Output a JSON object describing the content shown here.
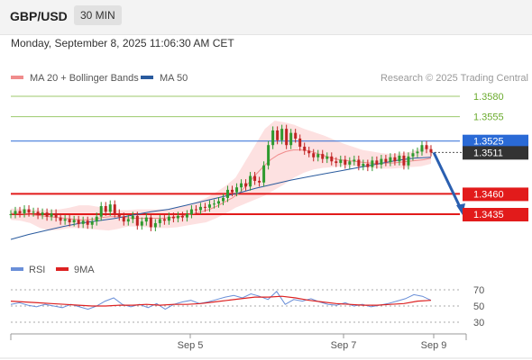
{
  "header": {
    "pair": "GBP/USD",
    "timeframe": "30 MIN"
  },
  "datetime": "Monday, September 8, 2025 11:06:30 AM CET",
  "copyright": "Research © 2025 Trading Central",
  "legend_price": [
    {
      "name": "MA 20 + Bollinger Bands",
      "color": "#f08c8c"
    },
    {
      "name": "MA 50",
      "color": "#2a5b9e"
    }
  ],
  "legend_rsi": [
    {
      "name": "RSI",
      "color": "#6a8fd8"
    },
    {
      "name": "9MA",
      "color": "#dd2222"
    }
  ],
  "colors": {
    "resistance": "#6bab2e",
    "support": "#e21b1b",
    "pivot": "#2a6ad6",
    "current": "#333333",
    "candle_up": "#2e9a2e",
    "candle_down": "#c02424",
    "band_fill": "#fde1e1",
    "arrow": "#2a5fb0"
  },
  "chart_data": [
    {
      "type": "candlestick",
      "pair": "GBP/USD",
      "timeframe": "30 MIN",
      "x_ticks": [
        "Sep 5",
        "Sep 7",
        "Sep 9"
      ],
      "levels": [
        {
          "value": "1.3580",
          "kind": "resistance"
        },
        {
          "value": "1.3555",
          "kind": "resistance"
        },
        {
          "value": "1.3525",
          "kind": "pivot"
        },
        {
          "value": "1.3511",
          "kind": "current"
        },
        {
          "value": "1.3460",
          "kind": "support"
        },
        {
          "value": "1.3435",
          "kind": "support"
        }
      ],
      "close": [
        1.3435,
        1.3439,
        1.3436,
        1.3441,
        1.3437,
        1.3438,
        1.3434,
        1.3437,
        1.3432,
        1.3436,
        1.3431,
        1.3427,
        1.3429,
        1.3425,
        1.3428,
        1.3423,
        1.3427,
        1.3422,
        1.3426,
        1.3432,
        1.3445,
        1.3438,
        1.3447,
        1.3436,
        1.3432,
        1.3426,
        1.3429,
        1.3433,
        1.3421,
        1.3426,
        1.3431,
        1.3419,
        1.3424,
        1.3429,
        1.3427,
        1.3432,
        1.343,
        1.3433,
        1.3431,
        1.3435,
        1.3441,
        1.344,
        1.3444,
        1.3443,
        1.3447,
        1.3448,
        1.3451,
        1.3455,
        1.3465,
        1.3462,
        1.3468,
        1.3473,
        1.3469,
        1.3482,
        1.3476,
        1.3474,
        1.3495,
        1.352,
        1.3538,
        1.3526,
        1.354,
        1.352,
        1.3535,
        1.3528,
        1.3518,
        1.3513,
        1.351,
        1.3505,
        1.3509,
        1.3503,
        1.3506,
        1.35,
        1.3498,
        1.3502,
        1.3496,
        1.35,
        1.3502,
        1.3494,
        1.3497,
        1.3493,
        1.3501,
        1.3496,
        1.3503,
        1.3499,
        1.3505,
        1.35,
        1.3507,
        1.3495,
        1.3506,
        1.351,
        1.3512,
        1.352,
        1.3515,
        1.3511
      ],
      "ma20": [
        1.3436,
        1.3436,
        1.3435,
        1.3434,
        1.3433,
        1.3432,
        1.3431,
        1.343,
        1.3429,
        1.3428,
        1.3428,
        1.3429,
        1.3431,
        1.3432,
        1.3432,
        1.3431,
        1.343,
        1.343,
        1.343,
        1.343,
        1.343,
        1.3431,
        1.3432,
        1.3434,
        1.3436,
        1.3438,
        1.3441,
        1.3445,
        1.345,
        1.3455,
        1.3462,
        1.3472,
        1.3483,
        1.3493,
        1.3502,
        1.3508,
        1.3512,
        1.3514,
        1.3514,
        1.3513,
        1.351,
        1.3507,
        1.3504,
        1.3502,
        1.3501,
        1.35,
        1.3499,
        1.3498,
        1.3497,
        1.3498,
        1.3498,
        1.3499,
        1.35,
        1.3501,
        1.3502,
        1.3504
      ],
      "bb_upper": [
        1.3442,
        1.3442,
        1.3441,
        1.344,
        1.344,
        1.3441,
        1.3443,
        1.3446,
        1.3446,
        1.3444,
        1.3441,
        1.344,
        1.344,
        1.3441,
        1.3441,
        1.3441,
        1.3441,
        1.3443,
        1.3446,
        1.345,
        1.3455,
        1.3462,
        1.347,
        1.348,
        1.35,
        1.352,
        1.354,
        1.355,
        1.3548,
        1.3545,
        1.354,
        1.3536,
        1.3532,
        1.3527,
        1.3522,
        1.3518,
        1.3514,
        1.3512,
        1.351,
        1.3509,
        1.351,
        1.3512,
        1.3516,
        1.352
      ],
      "bb_lower": [
        1.3428,
        1.3427,
        1.3424,
        1.3418,
        1.3415,
        1.3416,
        1.3418,
        1.3418,
        1.3417,
        1.3416,
        1.3415,
        1.3417,
        1.342,
        1.342,
        1.3419,
        1.3418,
        1.3418,
        1.3419,
        1.3421,
        1.3423,
        1.3425,
        1.343,
        1.3436,
        1.3443,
        1.3448,
        1.3453,
        1.3458,
        1.3465,
        1.3472,
        1.348,
        1.3486,
        1.349,
        1.3492,
        1.3493,
        1.3494,
        1.3494,
        1.3493,
        1.3492,
        1.3491,
        1.3491,
        1.3492,
        1.3493,
        1.3494,
        1.3497
      ],
      "ma50": [
        1.3404,
        1.341,
        1.3415,
        1.342,
        1.3424,
        1.3427,
        1.343,
        1.3434,
        1.3438,
        1.3441,
        1.3446,
        1.3451,
        1.3456,
        1.3461,
        1.3467,
        1.3472,
        1.3477,
        1.3481,
        1.3485,
        1.3489,
        1.3493,
        1.3497,
        1.3501,
        1.3504,
        1.3505
      ],
      "forecast": [
        1.3511,
        1.3435
      ],
      "rsi_ticks": [
        "70",
        "50",
        "30"
      ],
      "rsi": [
        52,
        54,
        51,
        49,
        52,
        50,
        48,
        52,
        49,
        46,
        50,
        56,
        60,
        52,
        49,
        52,
        48,
        53,
        46,
        52,
        55,
        57,
        53,
        55,
        58,
        61,
        63,
        60,
        65,
        62,
        58,
        68,
        52,
        58,
        56,
        59,
        55,
        52,
        51,
        54,
        50,
        52,
        49,
        51,
        53,
        56,
        59,
        64,
        62,
        57
      ],
      "rsi_ma": [
        56,
        55,
        54,
        53,
        52,
        51,
        50,
        50,
        51,
        51,
        52,
        51,
        52,
        52,
        53,
        55,
        57,
        59,
        61,
        61,
        62,
        60,
        57,
        55,
        53,
        52,
        51,
        51,
        52,
        53,
        56,
        57
      ]
    }
  ]
}
